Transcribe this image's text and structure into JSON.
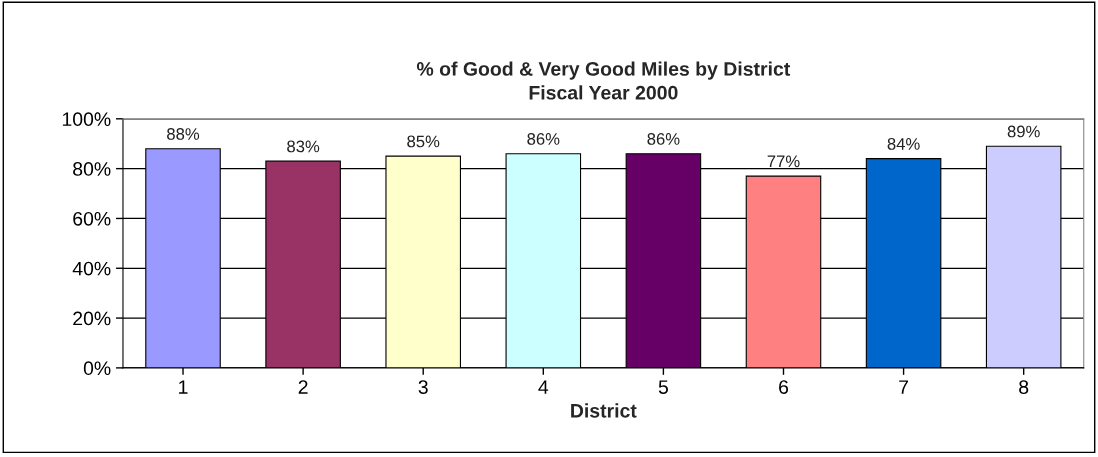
{
  "chart_data": {
    "type": "bar",
    "title": "% of Good & Very Good Miles by District\nFiscal Year 2000",
    "xlabel": "District",
    "categories": [
      "1",
      "2",
      "3",
      "4",
      "5",
      "6",
      "7",
      "8"
    ],
    "values": [
      88,
      83,
      85,
      86,
      86,
      77,
      84,
      89
    ],
    "value_labels": [
      "88%",
      "83%",
      "85%",
      "86%",
      "86%",
      "77%",
      "84%",
      "89%"
    ],
    "colors": [
      "#9999ff",
      "#993366",
      "#ffffcc",
      "#ccffff",
      "#660066",
      "#ff8080",
      "#0066cc",
      "#ccccff"
    ],
    "ylim": [
      0,
      100
    ],
    "yticks": [
      {
        "value": 0,
        "label": "0%"
      },
      {
        "value": 20,
        "label": "20%"
      },
      {
        "value": 40,
        "label": "40%"
      },
      {
        "value": 60,
        "label": "60%"
      },
      {
        "value": 80,
        "label": "80%"
      },
      {
        "value": 100,
        "label": "100%"
      }
    ],
    "grid": "y",
    "legend": false
  }
}
